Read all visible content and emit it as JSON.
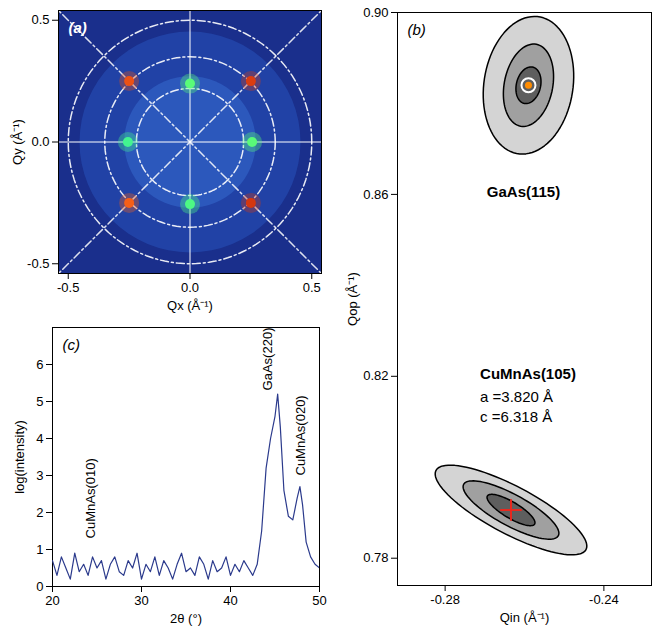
{
  "chart_data": [
    {
      "type": "heatmap",
      "panel": "(a)",
      "x_label": "Qx (Å⁻¹)",
      "y_label": "Qy (Å⁻¹)",
      "xlim": [
        -0.54,
        0.54
      ],
      "ylim": [
        -0.54,
        0.54
      ],
      "xticks": [
        -0.5,
        {
          "value": 0,
          "label": "0.0"
        },
        0.5
      ],
      "yticks": [
        -0.5,
        {
          "value": 0,
          "label": "0.0"
        },
        0.5
      ],
      "center": [
        0,
        0
      ],
      "circles": [
        0.22,
        0.35,
        0.5
      ],
      "spots": {
        "x": [
          -0.25,
          0.25,
          -0.25,
          0.25,
          0,
          0,
          -0.255,
          0.255
        ],
        "y": [
          0.25,
          0.25,
          -0.25,
          -0.25,
          0.24,
          -0.255,
          0,
          0
        ],
        "intensity": [
          0.82,
          0.85,
          0.8,
          0.86,
          0.42,
          0.4,
          0.38,
          0.42
        ]
      },
      "zlim": [
        0,
        1
      ]
    },
    {
      "type": "contour",
      "panel": "(b)",
      "x_label": "Qin (Å⁻¹)",
      "y_label": "Qop (Å⁻¹)",
      "xlim": [
        -0.292,
        -0.228
      ],
      "ylim": [
        0.774,
        0.9
      ],
      "xticks": [
        -0.28,
        -0.24
      ],
      "yticks": [
        0.78,
        0.82,
        0.86,
        {
          "value": 0.9,
          "label": "0.90"
        }
      ],
      "peaks": [
        {
          "x": -0.259,
          "y": 0.884,
          "marker": "circle",
          "color": "#ff8c00",
          "contours": [
            {
              "axis1": [
                0.003,
                0.015
              ],
              "axis2": [
                0.011,
                -0.002
              ]
            },
            {
              "axis1": [
                0.002,
                0.009
              ],
              "axis2": [
                0.006,
                -0.001
              ]
            },
            {
              "axis1": [
                0.001,
                0.004
              ],
              "axis2": [
                0.003,
                -0.0005
              ]
            }
          ]
        },
        {
          "x": -0.2634,
          "y": 0.7906,
          "marker": "cross",
          "color": "#e8281e",
          "contours": [
            {
              "axis1": [
                0.019,
                -0.0085
              ],
              "axis2": [
                0.002,
                0.005
              ]
            },
            {
              "axis1": [
                0.012,
                -0.0055
              ],
              "axis2": [
                0.0013,
                0.0033
              ]
            },
            {
              "axis1": [
                0.006,
                -0.003
              ],
              "axis2": [
                0.0007,
                0.0017
              ]
            }
          ]
        }
      ],
      "labels": [
        {
          "text": "GaAs(115)",
          "x": -0.2695,
          "y": 0.8605
        },
        {
          "text": "CuMnAs(105)",
          "x": -0.2712,
          "y": 0.8205
        }
      ],
      "annotations": [
        {
          "text": "a =3.820 Å",
          "x": -0.2712,
          "y": 0.8155
        },
        {
          "text": "c =6.318 Å",
          "x": -0.2712,
          "y": 0.811
        }
      ]
    },
    {
      "type": "line",
      "panel": "(c)",
      "x_label": "2θ (°)",
      "y_label": "log(intensity)",
      "xlim": [
        20,
        50
      ],
      "ylim": [
        0,
        7
      ],
      "xticks": [
        20,
        30,
        40,
        50
      ],
      "yticks": [
        0,
        1,
        2,
        3,
        4,
        5,
        6
      ],
      "color": "#2b3a8c",
      "x": [
        20,
        20.5,
        21,
        21.5,
        22,
        22.5,
        23,
        23.5,
        24,
        24.5,
        25,
        25.5,
        26,
        26.5,
        27,
        27.5,
        28,
        28.5,
        29,
        29.5,
        30,
        30.5,
        31,
        31.5,
        32,
        32.5,
        33,
        33.5,
        34,
        34.5,
        35,
        35.5,
        36,
        36.5,
        37,
        37.5,
        38,
        38.5,
        39,
        39.5,
        40,
        40.5,
        41,
        41.5,
        42,
        42.5,
        43,
        43.5,
        44,
        44.5,
        45,
        45.3,
        45.6,
        46,
        46.5,
        47,
        47.5,
        47.8,
        48.1,
        48.5,
        49,
        49.5,
        50
      ],
      "values": [
        0.7,
        0.3,
        0.8,
        0.5,
        0.2,
        0.9,
        0.4,
        0.6,
        0.3,
        0.8,
        0.5,
        0.7,
        0.2,
        0.6,
        0.8,
        0.4,
        0.3,
        0.7,
        0.5,
        0.9,
        0.2,
        0.6,
        0.4,
        0.8,
        0.3,
        0.7,
        0.5,
        0.2,
        0.6,
        0.9,
        0.4,
        0.5,
        0.3,
        0.8,
        0.6,
        0.2,
        0.7,
        0.4,
        0.5,
        0.8,
        0.3,
        0.6,
        0.4,
        0.7,
        0.5,
        0.3,
        0.6,
        1.5,
        3.2,
        4.0,
        4.6,
        5.2,
        4.3,
        2.6,
        1.9,
        1.8,
        2.4,
        2.7,
        2.2,
        1.2,
        0.8,
        0.6,
        0.5
      ],
      "annotations": [
        {
          "text": "CuMnAs(010)",
          "x": 24.3,
          "y": 1.3
        },
        {
          "text": "GaAs(220)",
          "x": 44.2,
          "y": 5.3
        },
        {
          "text": "CuMnAs(020)",
          "x": 47.9,
          "y": 3.0
        }
      ]
    }
  ]
}
